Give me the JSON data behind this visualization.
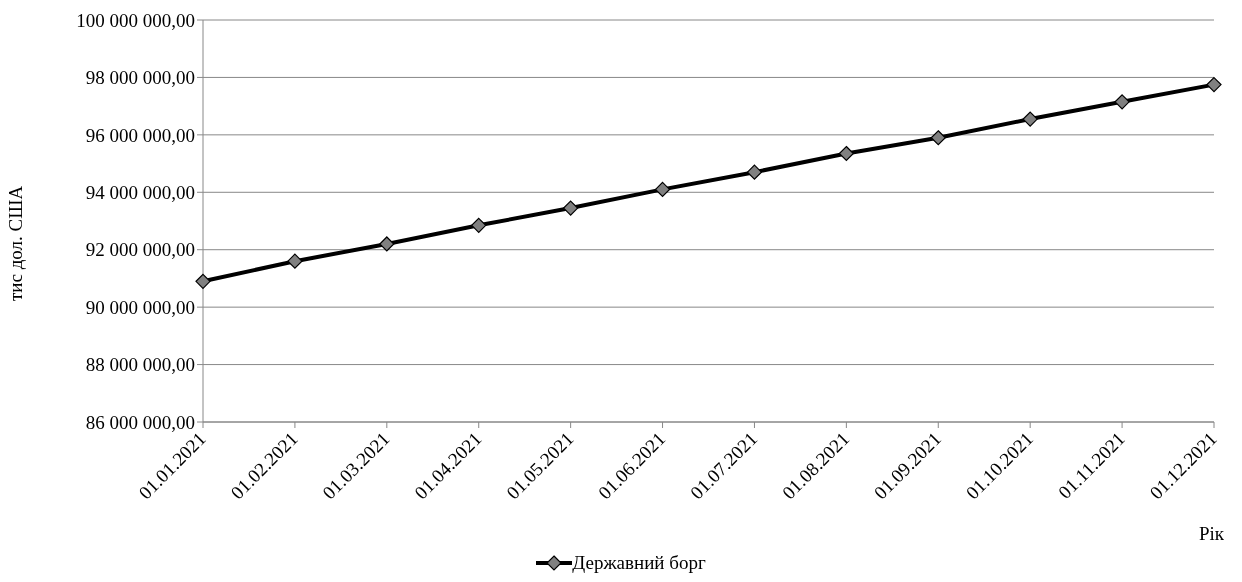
{
  "chart_data": {
    "type": "line",
    "xlabel": "Рік",
    "ylabel": "тис дол. США",
    "categories": [
      "01.01.2021",
      "01.02.2021",
      "01.03.2021",
      "01.04.2021",
      "01.05.2021",
      "01.06.2021",
      "01.07.2021",
      "01.08.2021",
      "01.09.2021",
      "01.10.2021",
      "01.11.2021",
      "01.12.2021"
    ],
    "series": [
      {
        "name": "Державний борг",
        "color": "#000000",
        "values": [
          90900000,
          91600000,
          92200000,
          92850000,
          93450000,
          94100000,
          94700000,
          95350000,
          95900000,
          96550000,
          97150000,
          97750000
        ]
      }
    ],
    "ylim": [
      86000000,
      100000000
    ],
    "yticks": [
      {
        "value": 86000000,
        "label": "86 000 000,00"
      },
      {
        "value": 88000000,
        "label": "88 000 000,00"
      },
      {
        "value": 90000000,
        "label": "90 000 000,00"
      },
      {
        "value": 92000000,
        "label": "92 000 000,00"
      },
      {
        "value": 94000000,
        "label": "94 000 000,00"
      },
      {
        "value": 96000000,
        "label": "96 000 000,00"
      },
      {
        "value": 98000000,
        "label": "98 000 000,00"
      },
      {
        "value": 100000000,
        "label": "100 000 000,00"
      }
    ],
    "grid": "y",
    "legend": "bottom",
    "marker": "diamond",
    "line_style": "solid"
  }
}
